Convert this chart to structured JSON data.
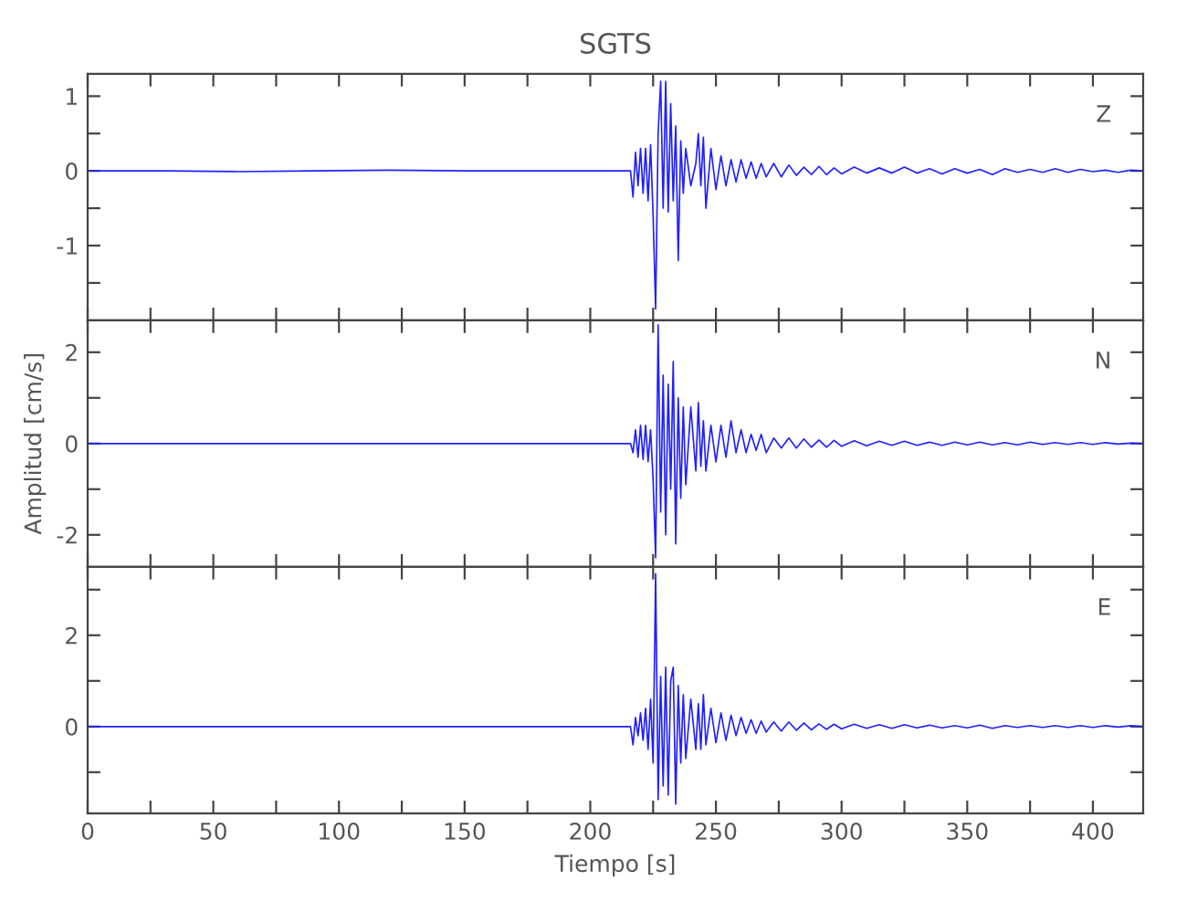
{
  "chart_data": [
    {
      "type": "line",
      "title": "SGTS",
      "annotations": [
        "Z"
      ],
      "tick_labels": "y",
      "grid": false,
      "marker": "none",
      "line_style": "solid",
      "x": [
        0,
        30,
        60,
        90,
        120,
        150,
        180,
        210,
        216,
        217,
        218,
        219,
        220,
        221,
        222,
        223,
        224,
        225,
        226,
        227,
        228,
        229,
        230,
        231,
        232,
        233,
        234,
        235,
        236,
        237,
        238,
        240,
        242,
        243,
        244,
        245,
        246,
        248,
        250,
        252,
        254,
        256,
        258,
        260,
        262,
        264,
        266,
        268,
        270,
        273,
        276,
        279,
        282,
        285,
        288,
        291,
        294,
        297,
        300,
        305,
        310,
        315,
        320,
        325,
        330,
        335,
        340,
        345,
        350,
        355,
        360,
        365,
        370,
        375,
        380,
        385,
        390,
        395,
        400,
        405,
        410,
        415,
        420
      ],
      "series": [
        {
          "color": "#2020ff",
          "values": [
            0,
            0,
            -0.01,
            0,
            0.01,
            0,
            0,
            0,
            0,
            -0.35,
            0.25,
            -0.2,
            0.3,
            -0.3,
            0.3,
            -0.4,
            0.35,
            -0.6,
            -1.85,
            0.5,
            1.2,
            -0.5,
            1.2,
            -0.55,
            0.9,
            -0.4,
            0.6,
            -1.2,
            0.4,
            -0.3,
            0.3,
            -0.2,
            0.1,
            0.5,
            -0.2,
            0.45,
            -0.5,
            0.3,
            -0.25,
            0.2,
            -0.2,
            0.15,
            -0.15,
            0.15,
            -0.1,
            0.12,
            -0.1,
            0.1,
            -0.08,
            0.1,
            -0.08,
            0.08,
            -0.06,
            0.05,
            -0.05,
            0.06,
            -0.05,
            0.04,
            -0.04,
            0.05,
            -0.03,
            0.04,
            -0.03,
            0.05,
            -0.03,
            0.03,
            -0.04,
            0.03,
            -0.03,
            0.02,
            -0.05,
            0.03,
            -0.02,
            0.02,
            -0.02,
            0.03,
            -0.02,
            0.02,
            -0.01,
            0.01,
            -0.02,
            0.01,
            0
          ]
        }
      ],
      "xlim": [
        0,
        420
      ],
      "xticks": [
        0,
        {
          "value": 25,
          "label": null
        },
        50,
        {
          "value": 75,
          "label": null
        },
        100,
        {
          "value": 125,
          "label": null
        },
        150,
        {
          "value": 175,
          "label": null
        },
        200,
        {
          "value": 225,
          "label": null
        },
        250,
        {
          "value": 275,
          "label": null
        },
        300,
        {
          "value": 325,
          "label": null
        },
        350,
        {
          "value": 375,
          "label": null
        },
        400
      ],
      "ylim": [
        -2,
        1.3
      ],
      "yticks": [
        {
          "value": -1.5,
          "label": null
        },
        -1,
        {
          "value": -0.5,
          "label": null
        },
        0,
        {
          "value": 0.5,
          "label": null
        },
        1
      ]
    },
    {
      "type": "line",
      "ylabel": "Amplitud [cm/s]",
      "annotations": [
        "N"
      ],
      "tick_labels": "y",
      "grid": false,
      "marker": "none",
      "line_style": "solid",
      "x": [
        0,
        30,
        60,
        90,
        120,
        150,
        180,
        210,
        216,
        217,
        218,
        219,
        220,
        221,
        222,
        223,
        224,
        225,
        226,
        227,
        228,
        229,
        230,
        231,
        232,
        233,
        234,
        235,
        236,
        237,
        238,
        240,
        242,
        243,
        244,
        245,
        246,
        248,
        250,
        252,
        254,
        256,
        258,
        260,
        262,
        264,
        266,
        268,
        270,
        273,
        276,
        279,
        282,
        285,
        288,
        291,
        294,
        297,
        300,
        305,
        310,
        315,
        320,
        325,
        330,
        335,
        340,
        345,
        350,
        355,
        360,
        365,
        370,
        375,
        380,
        385,
        390,
        395,
        400,
        405,
        410,
        415,
        420
      ],
      "series": [
        {
          "color": "#2020ff",
          "values": [
            0,
            0,
            0,
            0,
            0,
            0,
            0,
            0,
            0,
            -0.2,
            0.3,
            -0.3,
            0.4,
            -0.35,
            0.4,
            -0.4,
            0.3,
            -0.8,
            -2.5,
            2.6,
            -1.5,
            1.5,
            -2.0,
            1.3,
            -1.0,
            1.8,
            -2.2,
            1.0,
            -1.2,
            0.8,
            -0.9,
            0.8,
            -0.6,
            0.9,
            -0.5,
            0.5,
            -0.6,
            0.4,
            -0.4,
            0.4,
            -0.3,
            0.5,
            -0.2,
            0.3,
            -0.2,
            0.2,
            -0.15,
            0.2,
            -0.2,
            0.12,
            -0.1,
            0.12,
            -0.1,
            0.1,
            -0.08,
            0.08,
            -0.08,
            0.07,
            -0.06,
            0.06,
            -0.05,
            0.05,
            -0.04,
            0.05,
            -0.04,
            0.03,
            -0.04,
            0.03,
            -0.03,
            0.03,
            -0.03,
            0.02,
            -0.03,
            0.03,
            -0.02,
            0.02,
            -0.02,
            0.02,
            -0.02,
            0.02,
            -0.01,
            0.01,
            0
          ]
        }
      ],
      "xlim": [
        0,
        420
      ],
      "xticks": [
        0,
        {
          "value": 25,
          "label": null
        },
        50,
        {
          "value": 75,
          "label": null
        },
        100,
        {
          "value": 125,
          "label": null
        },
        150,
        {
          "value": 175,
          "label": null
        },
        200,
        {
          "value": 225,
          "label": null
        },
        250,
        {
          "value": 275,
          "label": null
        },
        300,
        {
          "value": 325,
          "label": null
        },
        350,
        {
          "value": 375,
          "label": null
        },
        400
      ],
      "ylim": [
        -2.7,
        2.7
      ],
      "yticks": [
        -2,
        {
          "value": -1,
          "label": null
        },
        0,
        {
          "value": 1,
          "label": null
        },
        2
      ]
    },
    {
      "type": "line",
      "xlabel": "Tiempo [s]",
      "annotations": [
        "E"
      ],
      "grid": false,
      "marker": "none",
      "line_style": "solid",
      "x": [
        0,
        30,
        60,
        90,
        120,
        150,
        180,
        210,
        216,
        217,
        218,
        219,
        220,
        221,
        222,
        223,
        224,
        225,
        226,
        227,
        228,
        229,
        230,
        231,
        232,
        233,
        234,
        235,
        236,
        237,
        238,
        240,
        242,
        243,
        244,
        245,
        246,
        248,
        250,
        252,
        254,
        256,
        258,
        260,
        262,
        264,
        266,
        268,
        270,
        273,
        276,
        279,
        282,
        285,
        288,
        291,
        294,
        297,
        300,
        305,
        310,
        315,
        320,
        325,
        330,
        335,
        340,
        345,
        350,
        355,
        360,
        365,
        370,
        375,
        380,
        385,
        390,
        395,
        400,
        405,
        410,
        415,
        420
      ],
      "series": [
        {
          "color": "#2020ff",
          "values": [
            0,
            0,
            0,
            0,
            0,
            0,
            0,
            0,
            0,
            -0.4,
            0.2,
            -0.2,
            0.3,
            -0.3,
            0.4,
            -0.5,
            0.6,
            -0.8,
            3.35,
            -1.6,
            1.1,
            -1.3,
            1.3,
            -1.5,
            1.0,
            1.3,
            -1.7,
            0.9,
            -0.8,
            0.7,
            -0.7,
            0.6,
            -0.5,
            0.5,
            -0.5,
            0.7,
            -0.4,
            0.4,
            -0.35,
            0.3,
            -0.3,
            0.25,
            -0.2,
            0.2,
            -0.15,
            0.15,
            -0.15,
            0.12,
            -0.12,
            0.1,
            -0.1,
            0.1,
            -0.08,
            0.08,
            -0.07,
            0.06,
            -0.06,
            0.05,
            -0.05,
            0.05,
            -0.04,
            0.04,
            -0.04,
            0.04,
            -0.03,
            0.03,
            -0.03,
            0.02,
            -0.03,
            0.03,
            -0.04,
            0.02,
            -0.02,
            0.02,
            -0.02,
            0.02,
            -0.02,
            0.02,
            -0.02,
            0.02,
            -0.01,
            0.02,
            0
          ]
        }
      ],
      "xlim": [
        0,
        420
      ],
      "xticks": [
        0,
        {
          "value": 25,
          "label": null
        },
        50,
        {
          "value": 75,
          "label": null
        },
        100,
        {
          "value": 125,
          "label": null
        },
        150,
        {
          "value": 175,
          "label": null
        },
        200,
        {
          "value": 225,
          "label": null
        },
        250,
        {
          "value": 275,
          "label": null
        },
        300,
        {
          "value": 325,
          "label": null
        },
        350,
        {
          "value": 375,
          "label": null
        },
        400
      ],
      "ylim": [
        -1.9,
        3.5
      ],
      "yticks": [
        {
          "value": -1,
          "label": null
        },
        0,
        {
          "value": 1,
          "label": null
        },
        2,
        {
          "value": 3,
          "label": null
        }
      ]
    }
  ]
}
